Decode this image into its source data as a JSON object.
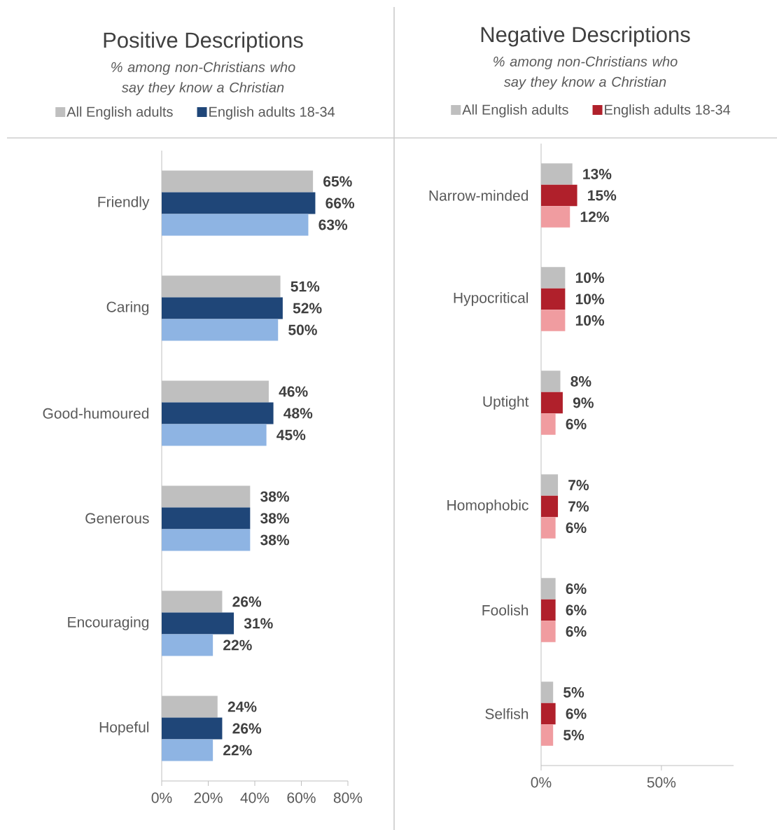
{
  "chart_data": [
    {
      "type": "bar",
      "orientation": "horizontal",
      "title": "Positive Descriptions",
      "subtitle": "% among non-Christians who say they know a Christian",
      "categories": [
        "Friendly",
        "Caring",
        "Good-humoured",
        "Generous",
        "Encouraging",
        "Hopeful"
      ],
      "series": [
        {
          "name": "All English adults",
          "color": "#bfbfbf",
          "values": [
            65,
            51,
            46,
            38,
            26,
            24
          ],
          "value_labels": [
            "65%",
            "51%",
            "46%",
            "38%",
            "26%",
            "24%"
          ]
        },
        {
          "name": "English adults 18-34",
          "color": "#1f4678",
          "values": [
            66,
            52,
            48,
            38,
            31,
            26
          ],
          "value_labels": [
            "66%",
            "52%",
            "48%",
            "38%",
            "31%",
            "26%"
          ]
        },
        {
          "color": "#8eb4e3",
          "values": [
            63,
            50,
            45,
            38,
            22,
            22
          ],
          "value_labels": [
            "63%",
            "50%",
            "45%",
            "38%",
            "22%",
            "22%"
          ]
        }
      ],
      "xlim": [
        0,
        80
      ],
      "xticks": [
        {
          "value": 0,
          "label": "0%"
        },
        {
          "value": 20,
          "label": "20%"
        },
        {
          "value": 40,
          "label": "40%"
        },
        {
          "value": 60,
          "label": "60%"
        },
        {
          "value": 80,
          "label": "80%"
        }
      ],
      "legend": "top"
    },
    {
      "type": "bar",
      "orientation": "horizontal",
      "title": "Negative Descriptions",
      "subtitle": "% among non-Christians who say they know a Christian",
      "categories": [
        "Narrow-minded",
        "Hypocritical",
        "Uptight",
        "Homophobic",
        "Foolish",
        "Selfish"
      ],
      "series": [
        {
          "name": "All English adults",
          "color": "#bfbfbf",
          "values": [
            13,
            10,
            8,
            7,
            6,
            5
          ],
          "value_labels": [
            "13%",
            "10%",
            "8%",
            "7%",
            "6%",
            "5%"
          ]
        },
        {
          "name": "English adults 18-34",
          "color": "#b0202b",
          "values": [
            15,
            10,
            9,
            7,
            6,
            6
          ],
          "value_labels": [
            "15%",
            "10%",
            "9%",
            "7%",
            "6%",
            "6%"
          ]
        },
        {
          "color": "#f09ca0",
          "values": [
            12,
            10,
            6,
            6,
            6,
            5
          ],
          "value_labels": [
            "12%",
            "10%",
            "6%",
            "6%",
            "6%",
            "5%"
          ]
        }
      ],
      "xlim": [
        0,
        80
      ],
      "xticks": [
        {
          "value": 0,
          "label": "0%"
        },
        {
          "value": 50,
          "label": "50%"
        }
      ],
      "legend": "top"
    }
  ]
}
